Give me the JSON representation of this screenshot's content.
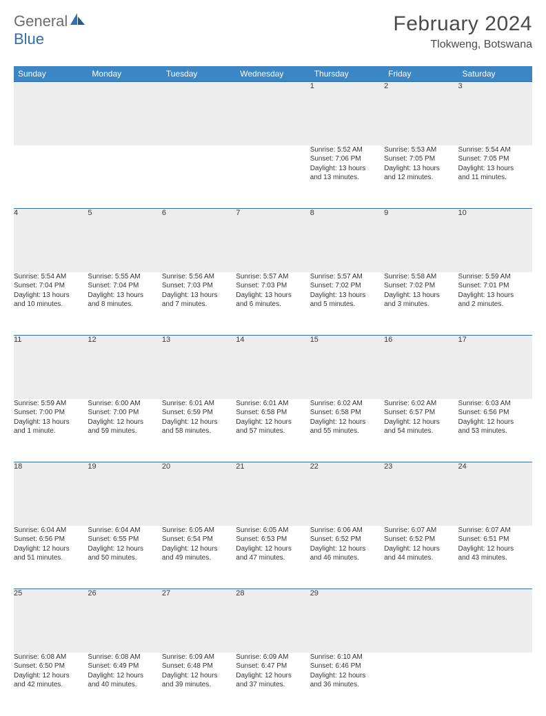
{
  "logo": {
    "part1": "General",
    "part2": "Blue"
  },
  "title": {
    "month": "February 2024",
    "location": "Tlokweng, Botswana"
  },
  "colors": {
    "header_bg": "#3D86C6",
    "daynum_bg": "#ededed",
    "row_border": "#2f6fae",
    "text": "#323232"
  },
  "day_headers": [
    "Sunday",
    "Monday",
    "Tuesday",
    "Wednesday",
    "Thursday",
    "Friday",
    "Saturday"
  ],
  "weeks": [
    {
      "nums": [
        "",
        "",
        "",
        "",
        "1",
        "2",
        "3"
      ],
      "cells": [
        null,
        null,
        null,
        null,
        {
          "sunrise": "Sunrise: 5:52 AM",
          "sunset": "Sunset: 7:06 PM",
          "daylight1": "Daylight: 13 hours",
          "daylight2": "and 13 minutes."
        },
        {
          "sunrise": "Sunrise: 5:53 AM",
          "sunset": "Sunset: 7:05 PM",
          "daylight1": "Daylight: 13 hours",
          "daylight2": "and 12 minutes."
        },
        {
          "sunrise": "Sunrise: 5:54 AM",
          "sunset": "Sunset: 7:05 PM",
          "daylight1": "Daylight: 13 hours",
          "daylight2": "and 11 minutes."
        }
      ]
    },
    {
      "nums": [
        "4",
        "5",
        "6",
        "7",
        "8",
        "9",
        "10"
      ],
      "cells": [
        {
          "sunrise": "Sunrise: 5:54 AM",
          "sunset": "Sunset: 7:04 PM",
          "daylight1": "Daylight: 13 hours",
          "daylight2": "and 10 minutes."
        },
        {
          "sunrise": "Sunrise: 5:55 AM",
          "sunset": "Sunset: 7:04 PM",
          "daylight1": "Daylight: 13 hours",
          "daylight2": "and 8 minutes."
        },
        {
          "sunrise": "Sunrise: 5:56 AM",
          "sunset": "Sunset: 7:03 PM",
          "daylight1": "Daylight: 13 hours",
          "daylight2": "and 7 minutes."
        },
        {
          "sunrise": "Sunrise: 5:57 AM",
          "sunset": "Sunset: 7:03 PM",
          "daylight1": "Daylight: 13 hours",
          "daylight2": "and 6 minutes."
        },
        {
          "sunrise": "Sunrise: 5:57 AM",
          "sunset": "Sunset: 7:02 PM",
          "daylight1": "Daylight: 13 hours",
          "daylight2": "and 5 minutes."
        },
        {
          "sunrise": "Sunrise: 5:58 AM",
          "sunset": "Sunset: 7:02 PM",
          "daylight1": "Daylight: 13 hours",
          "daylight2": "and 3 minutes."
        },
        {
          "sunrise": "Sunrise: 5:59 AM",
          "sunset": "Sunset: 7:01 PM",
          "daylight1": "Daylight: 13 hours",
          "daylight2": "and 2 minutes."
        }
      ]
    },
    {
      "nums": [
        "11",
        "12",
        "13",
        "14",
        "15",
        "16",
        "17"
      ],
      "cells": [
        {
          "sunrise": "Sunrise: 5:59 AM",
          "sunset": "Sunset: 7:00 PM",
          "daylight1": "Daylight: 13 hours",
          "daylight2": "and 1 minute."
        },
        {
          "sunrise": "Sunrise: 6:00 AM",
          "sunset": "Sunset: 7:00 PM",
          "daylight1": "Daylight: 12 hours",
          "daylight2": "and 59 minutes."
        },
        {
          "sunrise": "Sunrise: 6:01 AM",
          "sunset": "Sunset: 6:59 PM",
          "daylight1": "Daylight: 12 hours",
          "daylight2": "and 58 minutes."
        },
        {
          "sunrise": "Sunrise: 6:01 AM",
          "sunset": "Sunset: 6:58 PM",
          "daylight1": "Daylight: 12 hours",
          "daylight2": "and 57 minutes."
        },
        {
          "sunrise": "Sunrise: 6:02 AM",
          "sunset": "Sunset: 6:58 PM",
          "daylight1": "Daylight: 12 hours",
          "daylight2": "and 55 minutes."
        },
        {
          "sunrise": "Sunrise: 6:02 AM",
          "sunset": "Sunset: 6:57 PM",
          "daylight1": "Daylight: 12 hours",
          "daylight2": "and 54 minutes."
        },
        {
          "sunrise": "Sunrise: 6:03 AM",
          "sunset": "Sunset: 6:56 PM",
          "daylight1": "Daylight: 12 hours",
          "daylight2": "and 53 minutes."
        }
      ]
    },
    {
      "nums": [
        "18",
        "19",
        "20",
        "21",
        "22",
        "23",
        "24"
      ],
      "cells": [
        {
          "sunrise": "Sunrise: 6:04 AM",
          "sunset": "Sunset: 6:56 PM",
          "daylight1": "Daylight: 12 hours",
          "daylight2": "and 51 minutes."
        },
        {
          "sunrise": "Sunrise: 6:04 AM",
          "sunset": "Sunset: 6:55 PM",
          "daylight1": "Daylight: 12 hours",
          "daylight2": "and 50 minutes."
        },
        {
          "sunrise": "Sunrise: 6:05 AM",
          "sunset": "Sunset: 6:54 PM",
          "daylight1": "Daylight: 12 hours",
          "daylight2": "and 49 minutes."
        },
        {
          "sunrise": "Sunrise: 6:05 AM",
          "sunset": "Sunset: 6:53 PM",
          "daylight1": "Daylight: 12 hours",
          "daylight2": "and 47 minutes."
        },
        {
          "sunrise": "Sunrise: 6:06 AM",
          "sunset": "Sunset: 6:52 PM",
          "daylight1": "Daylight: 12 hours",
          "daylight2": "and 46 minutes."
        },
        {
          "sunrise": "Sunrise: 6:07 AM",
          "sunset": "Sunset: 6:52 PM",
          "daylight1": "Daylight: 12 hours",
          "daylight2": "and 44 minutes."
        },
        {
          "sunrise": "Sunrise: 6:07 AM",
          "sunset": "Sunset: 6:51 PM",
          "daylight1": "Daylight: 12 hours",
          "daylight2": "and 43 minutes."
        }
      ]
    },
    {
      "nums": [
        "25",
        "26",
        "27",
        "28",
        "29",
        "",
        ""
      ],
      "cells": [
        {
          "sunrise": "Sunrise: 6:08 AM",
          "sunset": "Sunset: 6:50 PM",
          "daylight1": "Daylight: 12 hours",
          "daylight2": "and 42 minutes."
        },
        {
          "sunrise": "Sunrise: 6:08 AM",
          "sunset": "Sunset: 6:49 PM",
          "daylight1": "Daylight: 12 hours",
          "daylight2": "and 40 minutes."
        },
        {
          "sunrise": "Sunrise: 6:09 AM",
          "sunset": "Sunset: 6:48 PM",
          "daylight1": "Daylight: 12 hours",
          "daylight2": "and 39 minutes."
        },
        {
          "sunrise": "Sunrise: 6:09 AM",
          "sunset": "Sunset: 6:47 PM",
          "daylight1": "Daylight: 12 hours",
          "daylight2": "and 37 minutes."
        },
        {
          "sunrise": "Sunrise: 6:10 AM",
          "sunset": "Sunset: 6:46 PM",
          "daylight1": "Daylight: 12 hours",
          "daylight2": "and 36 minutes."
        },
        null,
        null
      ]
    }
  ]
}
